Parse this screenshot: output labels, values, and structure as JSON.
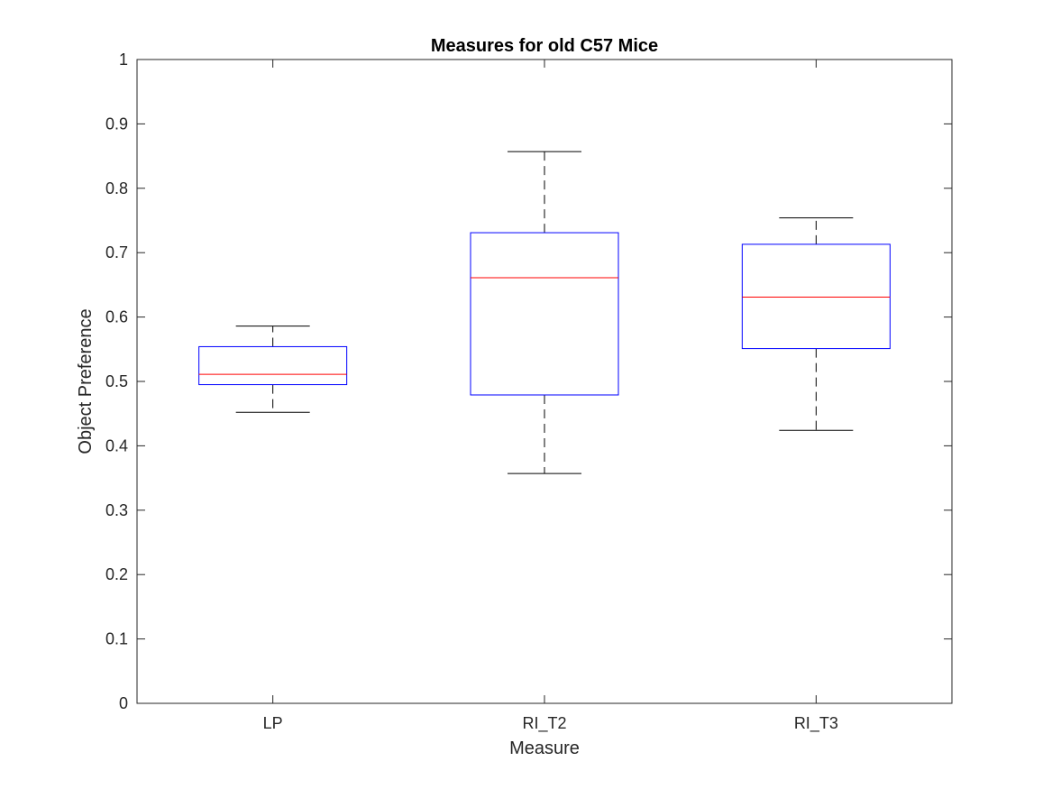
{
  "chart_data": {
    "type": "box",
    "title": "Measures for old C57 Mice",
    "xlabel": "Measure",
    "ylabel": "Object Preference",
    "ylim": [
      0,
      1
    ],
    "yticks": [
      "0",
      "0.1",
      "0.2",
      "0.3",
      "0.4",
      "0.5",
      "0.6",
      "0.7",
      "0.8",
      "0.9",
      "1"
    ],
    "categories": [
      "LP",
      "RI_T2",
      "RI_T3"
    ],
    "boxes": [
      {
        "category": "LP",
        "whisker_low": 0.452,
        "q1": 0.495,
        "median": 0.511,
        "q3": 0.554,
        "whisker_high": 0.586
      },
      {
        "category": "RI_T2",
        "whisker_low": 0.357,
        "q1": 0.479,
        "median": 0.661,
        "q3": 0.731,
        "whisker_high": 0.857
      },
      {
        "category": "RI_T3",
        "whisker_low": 0.424,
        "q1": 0.551,
        "median": 0.631,
        "q3": 0.713,
        "whisker_high": 0.754
      }
    ],
    "grid": false,
    "legend": "none",
    "colors": {
      "box": "#0000ff",
      "median": "#ff0000",
      "whisker": "#000000",
      "axis": "#262626"
    }
  }
}
